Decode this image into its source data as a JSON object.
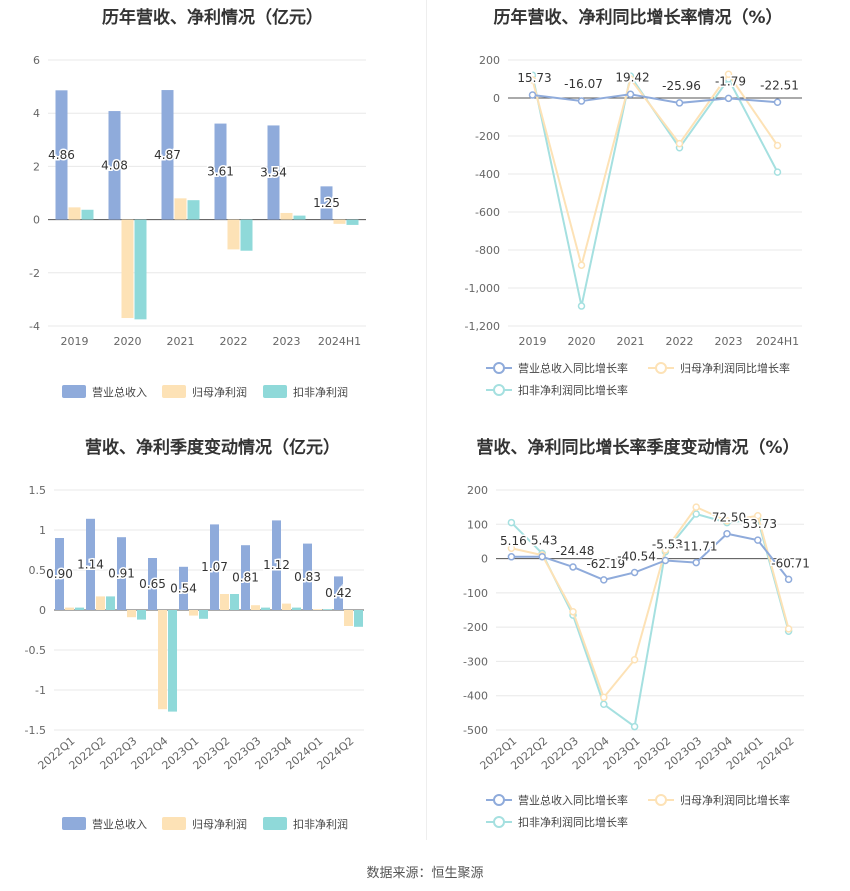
{
  "source_text": "数据来源：恒生聚源",
  "colors": {
    "revenue": "#8fabdb",
    "net_profit": "#fde2b6",
    "deducted_profit": "#8fd9d9",
    "revenue_line": "#8fabdb",
    "net_profit_line": "#fde2b6",
    "deducted_line": "#a5e0e0"
  },
  "chart_data": [
    {
      "id": "annual_bar",
      "type": "bar",
      "title": "历年营收、净利情况（亿元）",
      "categories": [
        "2019",
        "2020",
        "2021",
        "2022",
        "2023",
        "2024H1"
      ],
      "series": [
        {
          "name": "营业总收入",
          "values": [
            4.86,
            4.08,
            4.87,
            3.61,
            3.54,
            1.25
          ]
        },
        {
          "name": "归母净利润",
          "values": [
            0.46,
            -3.7,
            0.8,
            -1.12,
            0.25,
            -0.16
          ]
        },
        {
          "name": "扣非净利润",
          "values": [
            0.37,
            -3.75,
            0.73,
            -1.17,
            0.15,
            -0.2
          ]
        }
      ],
      "data_labels": [
        "4.86",
        "4.08",
        "4.87",
        "3.61",
        "3.54",
        "1.25"
      ],
      "ylim": [
        -4,
        6
      ],
      "yticks": [
        "-4",
        "-2",
        "0",
        "2",
        "4",
        "6"
      ],
      "legend_position": "bottom",
      "grid": true
    },
    {
      "id": "annual_growth",
      "type": "line",
      "title": "历年营收、净利同比增长率情况（%）",
      "categories": [
        "2019",
        "2020",
        "2021",
        "2022",
        "2023",
        "2024H1"
      ],
      "series": [
        {
          "name": "营业总收入同比增长率",
          "values": [
            15.73,
            -16.07,
            19.42,
            -25.96,
            -1.79,
            -22.51
          ]
        },
        {
          "name": "归母净利润同比增长率",
          "values": [
            95,
            -880,
            100,
            -240,
            125,
            -250
          ]
        },
        {
          "name": "扣非净利润同比增长率",
          "values": [
            120,
            -1095,
            115,
            -262,
            100,
            -390
          ]
        }
      ],
      "data_labels": [
        "15.73",
        "-16.07",
        "19.42",
        "-25.96",
        "-1.79",
        "-22.51"
      ],
      "ylim": [
        -1200,
        200
      ],
      "yticks": [
        "-1,200",
        "-1,000",
        "-800",
        "-600",
        "-400",
        "-200",
        "0",
        "200"
      ],
      "legend_position": "bottom",
      "grid": true
    },
    {
      "id": "quarterly_bar",
      "type": "bar",
      "title": "营收、净利季度变动情况（亿元）",
      "categories": [
        "2022Q1",
        "2022Q2",
        "2022Q3",
        "2022Q4",
        "2023Q1",
        "2023Q2",
        "2023Q3",
        "2023Q4",
        "2024Q1",
        "2024Q2"
      ],
      "series": [
        {
          "name": "营业总收入",
          "values": [
            0.9,
            1.14,
            0.91,
            0.65,
            0.54,
            1.07,
            0.81,
            1.12,
            0.83,
            0.42
          ]
        },
        {
          "name": "归母净利润",
          "values": [
            0.03,
            0.17,
            -0.09,
            -1.24,
            -0.07,
            0.2,
            0.06,
            0.08,
            0.01,
            -0.2
          ]
        },
        {
          "name": "扣非净利润",
          "values": [
            0.03,
            0.17,
            -0.12,
            -1.27,
            -0.11,
            0.2,
            0.03,
            0.03,
            0.01,
            -0.21
          ]
        }
      ],
      "data_labels": [
        "0.90",
        "1.14",
        "0.91",
        "0.65",
        "0.54",
        "1.07",
        "0.81",
        "1.12",
        "0.83",
        "0.42"
      ],
      "ylim": [
        -1.5,
        1.5
      ],
      "yticks": [
        "-1.5",
        "-1",
        "-0.5",
        "0",
        "0.5",
        "1",
        "1.5"
      ],
      "legend_position": "bottom",
      "grid": true
    },
    {
      "id": "quarterly_growth",
      "type": "line",
      "title": "营收、净利同比增长率季度变动情况（%）",
      "categories": [
        "2022Q1",
        "2022Q2",
        "2022Q3",
        "2022Q4",
        "2023Q1",
        "2023Q2",
        "2023Q3",
        "2023Q4",
        "2024Q1",
        "2024Q2"
      ],
      "series": [
        {
          "name": "营业总收入同比增长率",
          "values": [
            5.16,
            5.43,
            -24.48,
            -62.19,
            -40.54,
            -5.53,
            -11.71,
            72.5,
            53.73,
            -60.71
          ]
        },
        {
          "name": "归母净利润同比增长率",
          "values": [
            30,
            10,
            -155,
            -405,
            -295,
            25,
            150,
            110,
            125,
            -205
          ]
        },
        {
          "name": "扣非净利润同比增长率",
          "values": [
            105,
            15,
            -165,
            -425,
            -490,
            20,
            130,
            105,
            115,
            -212
          ]
        }
      ],
      "data_labels": [
        "5.16",
        "5.43",
        "-24.48",
        "-62.19",
        "-40.54",
        "-5.53",
        "-11.71",
        "72.50",
        "53.73",
        "-60.71"
      ],
      "ylim": [
        -500,
        200
      ],
      "yticks": [
        "-500",
        "-400",
        "-300",
        "-200",
        "-100",
        "0",
        "100",
        "200"
      ],
      "legend_position": "bottom",
      "grid": true
    }
  ]
}
